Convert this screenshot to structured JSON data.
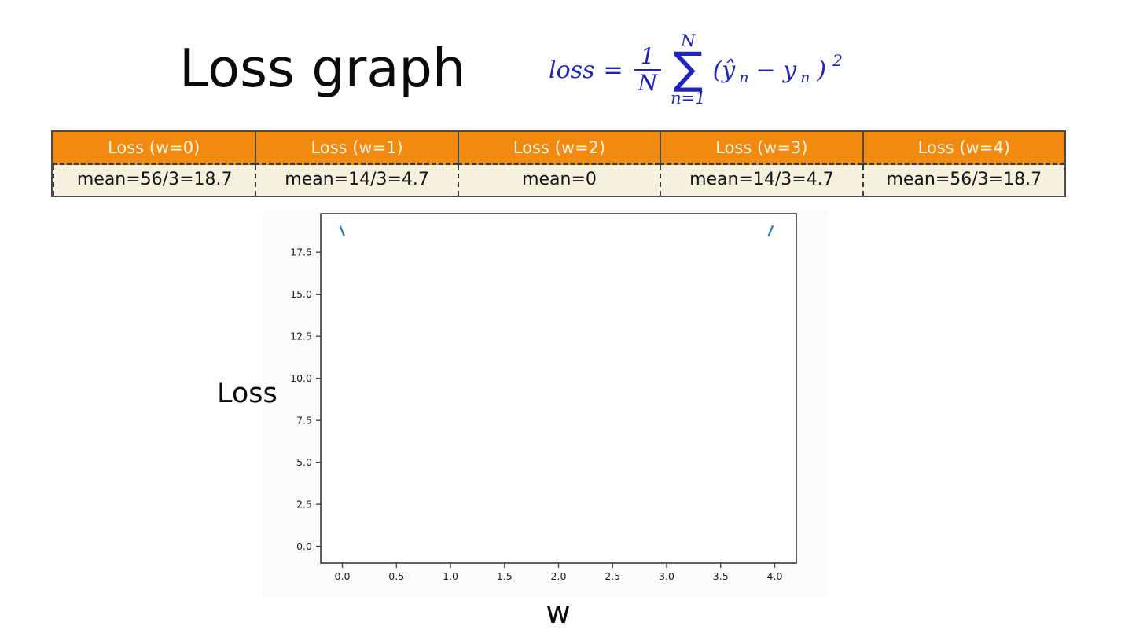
{
  "slide": {
    "title": "Loss graph"
  },
  "formula": {
    "lhs": "loss",
    "equals": "=",
    "frac_numerator": "1",
    "frac_denominator": "N",
    "sum_upper": "N",
    "sum_symbol": "∑",
    "sum_lower": "n=1",
    "term_open": "(ŷ",
    "term_sub1": "n",
    "term_minus": "− y",
    "term_sub2": "n",
    "term_close": ")",
    "term_exponent": "2"
  },
  "table": {
    "headers": [
      "Loss (w=0)",
      "Loss (w=1)",
      "Loss (w=2)",
      "Loss (w=3)",
      "Loss (w=4)"
    ],
    "values": [
      "mean=56/3=18.7",
      "mean=14/3=4.7",
      "mean=0",
      "mean=14/3=4.7",
      "mean=56/3=18.7"
    ]
  },
  "axis_labels": {
    "y": "Loss",
    "x": "w"
  },
  "colors": {
    "table_header_bg": "#f18a0f",
    "table_header_text": "#fdf6e4",
    "table_body_bg": "#f6f1de",
    "formula_blue": "#1e24bc",
    "curve_blue": "#1f77b4",
    "spine_gray": "#3a3a3a"
  },
  "chart_data": {
    "type": "line",
    "title": "",
    "xlabel": "w",
    "ylabel": "Loss",
    "xlim": [
      -0.2,
      4.2
    ],
    "ylim": [
      -1.0,
      19.8
    ],
    "xticks": [
      "0.0",
      "0.5",
      "1.0",
      "1.5",
      "2.0",
      "2.5",
      "3.0",
      "3.5",
      "4.0"
    ],
    "yticks": [
      "0.0",
      "2.5",
      "5.0",
      "7.5",
      "10.0",
      "12.5",
      "15.0",
      "17.5"
    ],
    "grid": false,
    "legend": false,
    "series": [
      {
        "name": "loss-curve-left-segment",
        "color": "#1f77b4",
        "points": [
          [
            -0.02,
            19.05
          ],
          [
            0.015,
            18.5
          ]
        ]
      },
      {
        "name": "loss-curve-right-segment",
        "color": "#1f77b4",
        "points": [
          [
            3.945,
            18.5
          ],
          [
            3.98,
            19.05
          ]
        ]
      }
    ]
  }
}
